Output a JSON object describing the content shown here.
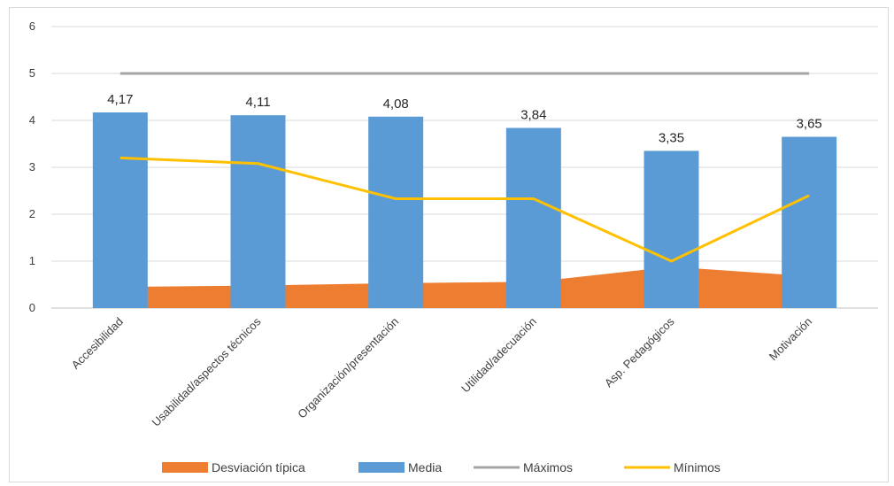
{
  "chart_data": {
    "type": "bar",
    "categories": [
      "Accesibilidad",
      "Usabilidad/aspectos técnicos",
      "Organización/presentación",
      "Utilidad/adecuación",
      "Asp. Pedagógicos",
      "Motivación"
    ],
    "series": [
      {
        "name": "Desviación típica",
        "kind": "area",
        "color": "#ed7d31",
        "values": [
          0.45,
          0.48,
          0.53,
          0.56,
          0.88,
          0.68
        ]
      },
      {
        "name": "Media",
        "kind": "bar",
        "color": "#5b9bd5",
        "values": [
          4.17,
          4.11,
          4.08,
          3.84,
          3.35,
          3.65
        ]
      },
      {
        "name": "Máximos",
        "kind": "line",
        "color": "#a5a5a5",
        "values": [
          5,
          5,
          5,
          5,
          5,
          5
        ]
      },
      {
        "name": "Mínimos",
        "kind": "line",
        "color": "#ffc000",
        "values": [
          3.2,
          3.08,
          2.33,
          2.33,
          1.0,
          2.4
        ]
      }
    ],
    "data_labels": [
      "4,17",
      "4,11",
      "4,08",
      "3,84",
      "3,35",
      "3,65"
    ],
    "yticks": [
      "0",
      "1",
      "2",
      "3",
      "4",
      "5",
      "6"
    ],
    "ylim": [
      0,
      6
    ],
    "grid": true,
    "legend_position": "bottom"
  }
}
